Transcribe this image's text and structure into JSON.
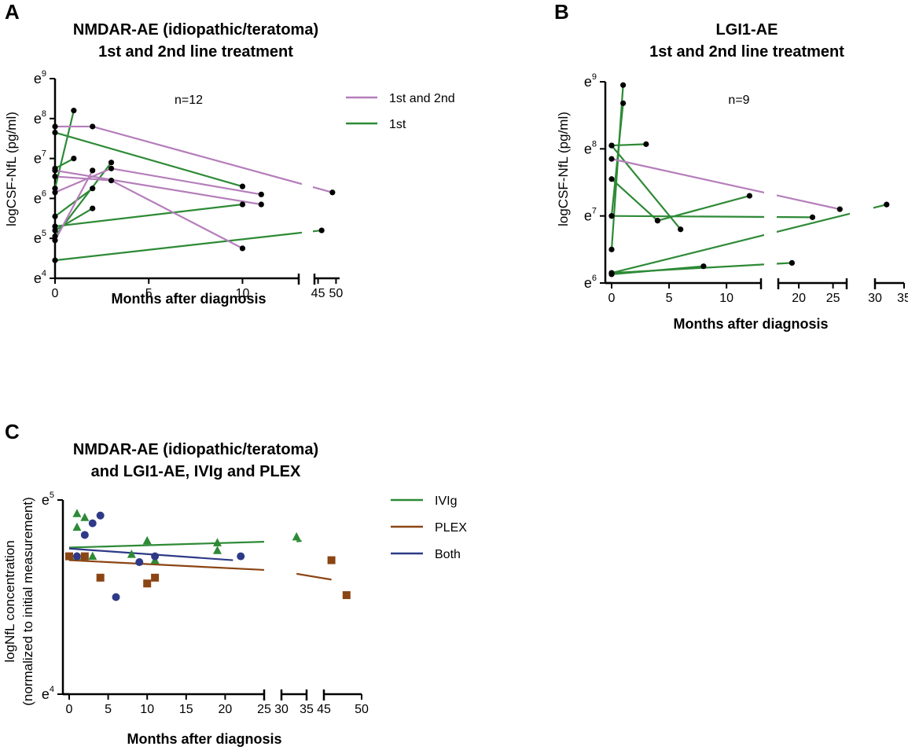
{
  "colors": {
    "purple": "#b57ebb",
    "green": "#2d8a36",
    "brown": "#8b4513",
    "navy": "#2e3a87",
    "black": "#000000"
  },
  "chart_data": [
    {
      "panel": "A",
      "type": "line",
      "title_line1": "NMDAR-AE (idiopathic/teratoma)",
      "title_line2": "1st and 2nd line treatment",
      "xlabel": "Months after diagnosis",
      "ylabel": "logCSF-NfL (pg/ml)",
      "y_scale": "natural log",
      "ylim_exp": [
        4,
        9
      ],
      "y_tick_exponents": [
        "4",
        "5",
        "6",
        "7",
        "8",
        "9"
      ],
      "y_tick_base": "e",
      "x_segments": [
        {
          "range": [
            0,
            13
          ],
          "ticks": [
            0,
            5,
            10
          ],
          "tick_labels": [
            "0",
            "5",
            "10"
          ]
        },
        {
          "range": [
            44,
            51
          ],
          "ticks": [
            45,
            50
          ],
          "tick_labels": [
            "45",
            "50"
          ]
        }
      ],
      "annotation": "n=12",
      "legend": [
        {
          "label": "1st and 2nd",
          "color": "#b57ebb"
        },
        {
          "label": "1st",
          "color": "#2d8a36"
        }
      ],
      "series": [
        {
          "group": "1st",
          "points": [
            [
              0,
              6.25
            ],
            [
              1,
              8.2
            ]
          ]
        },
        {
          "group": "1st",
          "points": [
            [
              0,
              6.75
            ],
            [
              1,
              7.0
            ]
          ]
        },
        {
          "group": "1st",
          "points": [
            [
              0,
              5.55
            ],
            [
              2,
              6.25
            ]
          ]
        },
        {
          "group": "1st",
          "points": [
            [
              0,
              5.2
            ],
            [
              2,
              5.75
            ]
          ]
        },
        {
          "group": "1st",
          "points": [
            [
              0,
              5.05
            ],
            [
              3,
              6.9
            ]
          ]
        },
        {
          "group": "1st",
          "points": [
            [
              0,
              7.65
            ],
            [
              10,
              6.3
            ]
          ]
        },
        {
          "group": "1st",
          "points": [
            [
              0,
              5.3
            ],
            [
              10,
              5.85
            ]
          ]
        },
        {
          "group": "1st",
          "points": [
            [
              0,
              4.45
            ],
            [
              46,
              5.2
            ]
          ]
        },
        {
          "group": "1st and 2nd",
          "points": [
            [
              0,
              7.8
            ],
            [
              2,
              7.8
            ],
            [
              49,
              6.15
            ]
          ]
        },
        {
          "group": "1st and 2nd",
          "points": [
            [
              0,
              6.15
            ],
            [
              3,
              6.75
            ],
            [
              11,
              6.1
            ]
          ]
        },
        {
          "group": "1st and 2nd",
          "points": [
            [
              0,
              6.55
            ],
            [
              3,
              6.45
            ],
            [
              10,
              4.75
            ]
          ]
        },
        {
          "group": "1st and 2nd",
          "points": [
            [
              0,
              6.7
            ],
            [
              11,
              5.85
            ]
          ]
        },
        {
          "group": "1st and 2nd",
          "points": [
            [
              0,
              4.95
            ],
            [
              2,
              6.7
            ]
          ]
        }
      ]
    },
    {
      "panel": "B",
      "type": "line",
      "title_line1": "LGI1-AE",
      "title_line2": "1st and 2nd line treatment",
      "xlabel": "Months after diagnosis",
      "ylabel": "logCSF-NfL (pg/ml)",
      "y_scale": "natural log",
      "ylim_exp": [
        6,
        9
      ],
      "y_tick_exponents": [
        "6",
        "7",
        "8",
        "9"
      ],
      "y_tick_base": "e",
      "x_segments": [
        {
          "range": [
            0,
            13
          ],
          "ticks": [
            0,
            5,
            10
          ],
          "tick_labels": [
            "0",
            "5",
            "10"
          ]
        },
        {
          "range": [
            17,
            27
          ],
          "ticks": [
            20,
            25
          ],
          "tick_labels": [
            "20",
            "25"
          ]
        },
        {
          "range": [
            30,
            35
          ],
          "ticks": [
            30,
            35
          ],
          "tick_labels": [
            "30",
            "35"
          ]
        }
      ],
      "annotation": "n=9",
      "series": [
        {
          "group": "1st",
          "points": [
            [
              0,
              6.5
            ],
            [
              1,
              8.95
            ]
          ]
        },
        {
          "group": "1st",
          "points": [
            [
              0,
              7.0
            ],
            [
              1,
              8.68
            ]
          ]
        },
        {
          "group": "1st",
          "points": [
            [
              0,
              8.05
            ],
            [
              3,
              8.07
            ]
          ]
        },
        {
          "group": "1st",
          "points": [
            [
              0,
              8.05
            ],
            [
              6,
              6.8
            ]
          ]
        },
        {
          "group": "1st",
          "points": [
            [
              0,
              7.55
            ],
            [
              4,
              6.93
            ]
          ]
        },
        {
          "group": "1st",
          "points": [
            [
              0,
              7.0
            ],
            [
              22,
              6.98
            ]
          ]
        },
        {
          "group": "1st",
          "points": [
            [
              0,
              6.13
            ],
            [
              8,
              6.25
            ]
          ]
        },
        {
          "group": "1st",
          "points": [
            [
              0,
              6.15
            ],
            [
              32,
              7.17
            ]
          ]
        },
        {
          "group": "1st",
          "points": [
            [
              4,
              6.93
            ],
            [
              12,
              7.3
            ]
          ]
        },
        {
          "group": "1st",
          "points": [
            [
              0,
              6.15
            ],
            [
              19,
              6.3
            ]
          ]
        },
        {
          "group": "1st and 2nd",
          "points": [
            [
              0,
              7.85
            ],
            [
              26,
              7.1
            ]
          ]
        }
      ]
    },
    {
      "panel": "C",
      "type": "scatter",
      "title_line1": "NMDAR-AE (idiopathic/teratoma)",
      "title_line2": "and LGI1-AE, IVIg and PLEX",
      "xlabel": "Months after diagnosis",
      "ylabel_line1": "logNfL concentration",
      "ylabel_line2": "(normalized to initial measurement)",
      "y_scale": "natural log",
      "ylim_exp": [
        4,
        5
      ],
      "y_tick_exponents": [
        "4",
        "5"
      ],
      "y_tick_base": "e",
      "x_segments": [
        {
          "range": [
            0,
            25
          ],
          "ticks": [
            0,
            5,
            10,
            15,
            20,
            25
          ],
          "tick_labels": [
            "0",
            "5",
            "10",
            "15",
            "20",
            "25"
          ]
        },
        {
          "range": [
            30,
            35
          ],
          "ticks": [
            30,
            35
          ],
          "tick_labels": [
            "30",
            "35"
          ]
        },
        {
          "range": [
            45,
            50
          ],
          "ticks": [
            45,
            50
          ],
          "tick_labels": [
            "45",
            "50"
          ]
        }
      ],
      "legend": [
        {
          "label": "IVIg",
          "color": "#2d8a36"
        },
        {
          "label": "PLEX",
          "color": "#8b4513"
        },
        {
          "label": "Both",
          "color": "#2e3a87"
        }
      ],
      "series": [
        {
          "name": "IVIg",
          "marker": "triangle",
          "points": [
            [
              1,
              4.93
            ],
            [
              1,
              4.86
            ],
            [
              2,
              4.91
            ],
            [
              1,
              4.71
            ],
            [
              3,
              4.71
            ],
            [
              8,
              4.72
            ],
            [
              10,
              4.79
            ],
            [
              11,
              4.69
            ],
            [
              19,
              4.78
            ],
            [
              19,
              4.74
            ],
            [
              33,
              4.81
            ]
          ],
          "fit": [
            [
              0,
              4.755
            ],
            [
              25,
              4.785
            ]
          ],
          "fit_ext": [
            [
              33,
              4.787
            ],
            [
              34,
              4.789
            ]
          ]
        },
        {
          "name": "PLEX",
          "marker": "square",
          "points": [
            [
              0,
              4.71
            ],
            [
              2,
              4.71
            ],
            [
              4,
              4.6
            ],
            [
              10,
              4.57
            ],
            [
              11,
              4.6
            ],
            [
              46,
              4.69
            ],
            [
              48,
              4.51
            ]
          ],
          "fit": [
            [
              0,
              4.69
            ],
            [
              25,
              4.64
            ]
          ],
          "fit_ext": [
            [
              33,
              4.62
            ],
            [
              46,
              4.59
            ]
          ]
        },
        {
          "name": "Both",
          "marker": "circle",
          "points": [
            [
              1,
              4.71
            ],
            [
              2,
              4.82
            ],
            [
              3,
              4.88
            ],
            [
              4,
              4.92
            ],
            [
              6,
              4.5
            ],
            [
              9,
              4.68
            ],
            [
              11,
              4.71
            ],
            [
              22,
              4.71
            ]
          ],
          "fit": [
            [
              0,
              4.75
            ],
            [
              21,
              4.69
            ]
          ]
        }
      ]
    }
  ]
}
